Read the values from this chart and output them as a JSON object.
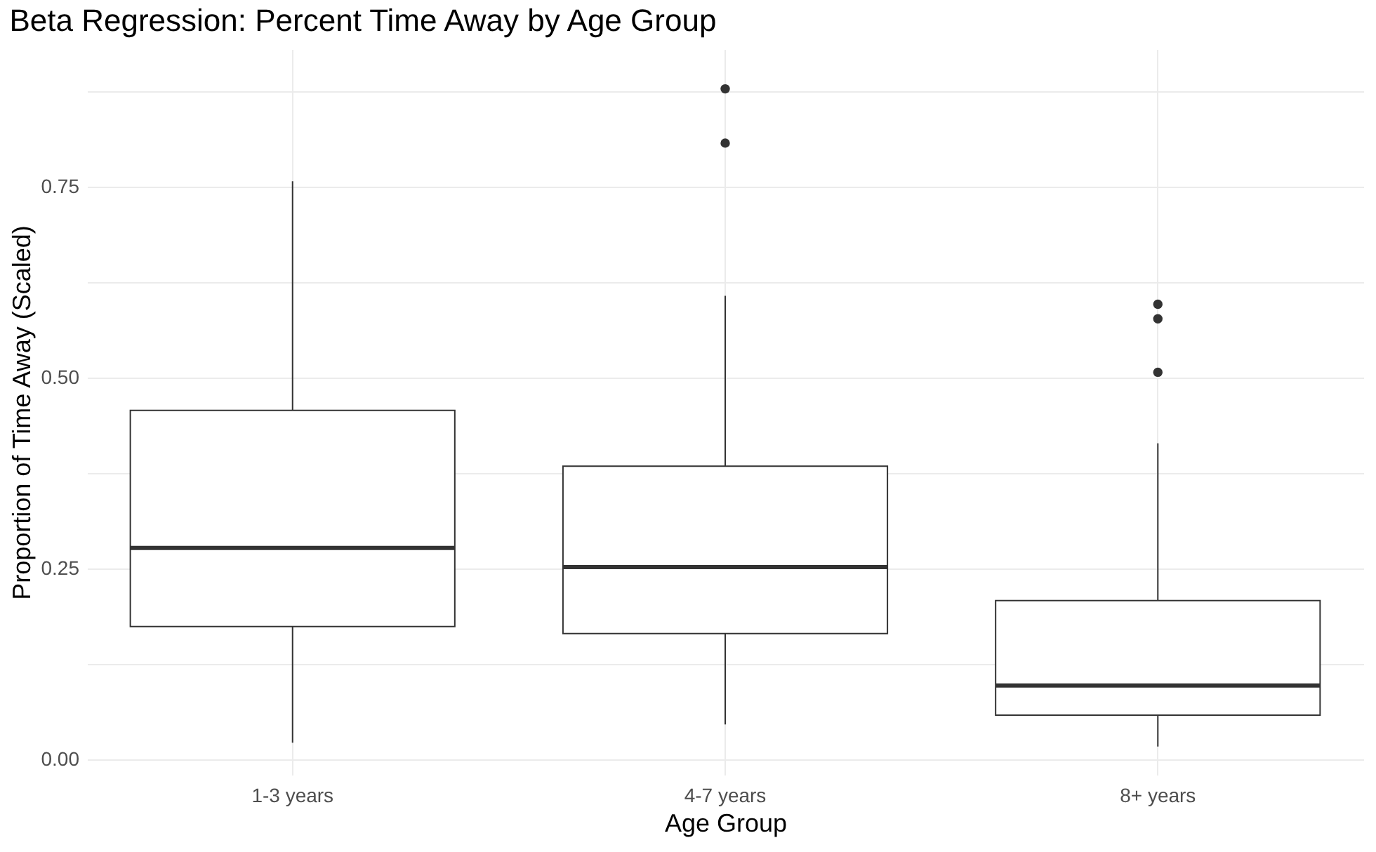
{
  "chart_data": {
    "type": "box",
    "title": "Beta Regression: Percent Time Away by Age Group",
    "xlabel": "Age Group",
    "ylabel": "Proportion of Time Away (Scaled)",
    "categories": [
      "1-3 years",
      "4-7 years",
      "8+ years"
    ],
    "boxes": [
      {
        "low": 0.022,
        "q1": 0.174,
        "median": 0.277,
        "q3": 0.457,
        "high": 0.757
      },
      {
        "low": 0.046,
        "q1": 0.165,
        "median": 0.252,
        "q3": 0.384,
        "high": 0.607,
        "outliers": [
          0.807,
          0.878
        ]
      },
      {
        "low": 0.017,
        "q1": 0.058,
        "median": 0.097,
        "q3": 0.208,
        "high": 0.414,
        "outliers": [
          0.507,
          0.577,
          0.596
        ]
      }
    ],
    "color": "#333333",
    "ylim": [
      -0.02,
      0.93
    ],
    "yticks": [
      {
        "value": 0,
        "label": "0.00"
      },
      {
        "value": 0.125,
        "label": null
      },
      {
        "value": 0.25,
        "label": "0.25"
      },
      {
        "value": 0.375,
        "label": null
      },
      {
        "value": 0.5,
        "label": "0.50"
      },
      {
        "value": 0.625,
        "label": null
      },
      {
        "value": 0.75,
        "label": "0.75"
      },
      {
        "value": 0.875,
        "label": null
      }
    ],
    "grid": true
  }
}
